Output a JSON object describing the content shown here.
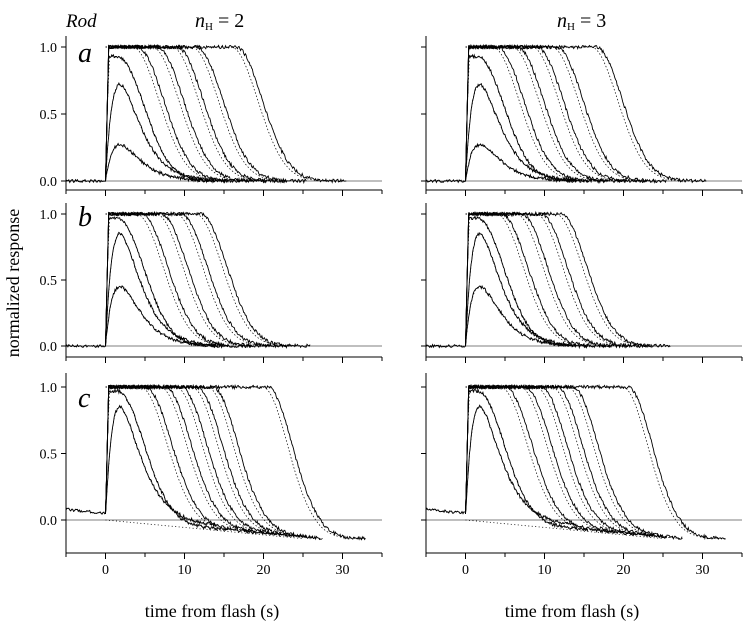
{
  "figure": {
    "rod_label": "Rod",
    "ylabel": "normalized response",
    "xlabel": "time from flash (s)",
    "column_titles": [
      {
        "n": "n",
        "sub": "H",
        "eq": " = 2"
      },
      {
        "n": "n",
        "sub": "H",
        "eq": " = 3"
      }
    ],
    "row_labels": [
      "a",
      "b",
      "c"
    ]
  },
  "chart_data": {
    "type": "line",
    "layout": "3 rows x 2 columns of panels",
    "x_ticks": [
      0,
      10,
      20,
      30
    ],
    "y_ticks": [
      0.0,
      0.5,
      1.0
    ],
    "x_tick_labels": [
      "0",
      "10",
      "20",
      "30"
    ],
    "y_tick_labels": [
      "0.0",
      "0.5",
      "1.0"
    ],
    "xlim": [
      -5,
      35
    ],
    "ylim": [
      -0.05,
      1.08
    ],
    "row_c_ylim": [
      -0.22,
      1.08
    ],
    "panels": [
      {
        "row": "a",
        "col": 1,
        "peaks": [
          0.27,
          0.72,
          0.93,
          1.0,
          1.0,
          1.0,
          1.0,
          1.0
        ],
        "plateau_end_s": [
          0,
          0,
          1.5,
          4,
          6.5,
          9,
          11.5,
          16.5
        ],
        "undershoot": false
      },
      {
        "row": "a",
        "col": 2,
        "peaks": [
          0.27,
          0.72,
          0.93,
          1.0,
          1.0,
          1.0,
          1.0,
          1.0
        ],
        "plateau_end_s": [
          0,
          0,
          1.5,
          4,
          6.5,
          9,
          11.5,
          16.5
        ],
        "undershoot": false
      },
      {
        "row": "b",
        "col": 1,
        "peaks": [
          0.45,
          0.85,
          0.97,
          1.0,
          1.0,
          1.0,
          1.0
        ],
        "plateau_end_s": [
          0,
          0,
          1.5,
          4.5,
          7,
          9.5,
          12
        ],
        "undershoot": false
      },
      {
        "row": "b",
        "col": 2,
        "peaks": [
          0.45,
          0.85,
          0.97,
          1.0,
          1.0,
          1.0,
          1.0
        ],
        "plateau_end_s": [
          0,
          0,
          1.5,
          4.5,
          7,
          9.5,
          12
        ],
        "undershoot": false
      },
      {
        "row": "c",
        "col": 1,
        "peaks": [
          0.85,
          0.97,
          1.0,
          1.0,
          1.0,
          1.0,
          1.0,
          1.0
        ],
        "plateau_end_s": [
          0,
          1.5,
          5,
          7.5,
          9.5,
          11.5,
          13.5,
          20.5
        ],
        "undershoot": true
      },
      {
        "row": "c",
        "col": 2,
        "peaks": [
          0.85,
          0.97,
          1.0,
          1.0,
          1.0,
          1.0,
          1.0,
          1.0
        ],
        "plateau_end_s": [
          0,
          1.5,
          5,
          7.5,
          9.5,
          11.5,
          13.5,
          20.5
        ],
        "undershoot": true
      }
    ]
  }
}
